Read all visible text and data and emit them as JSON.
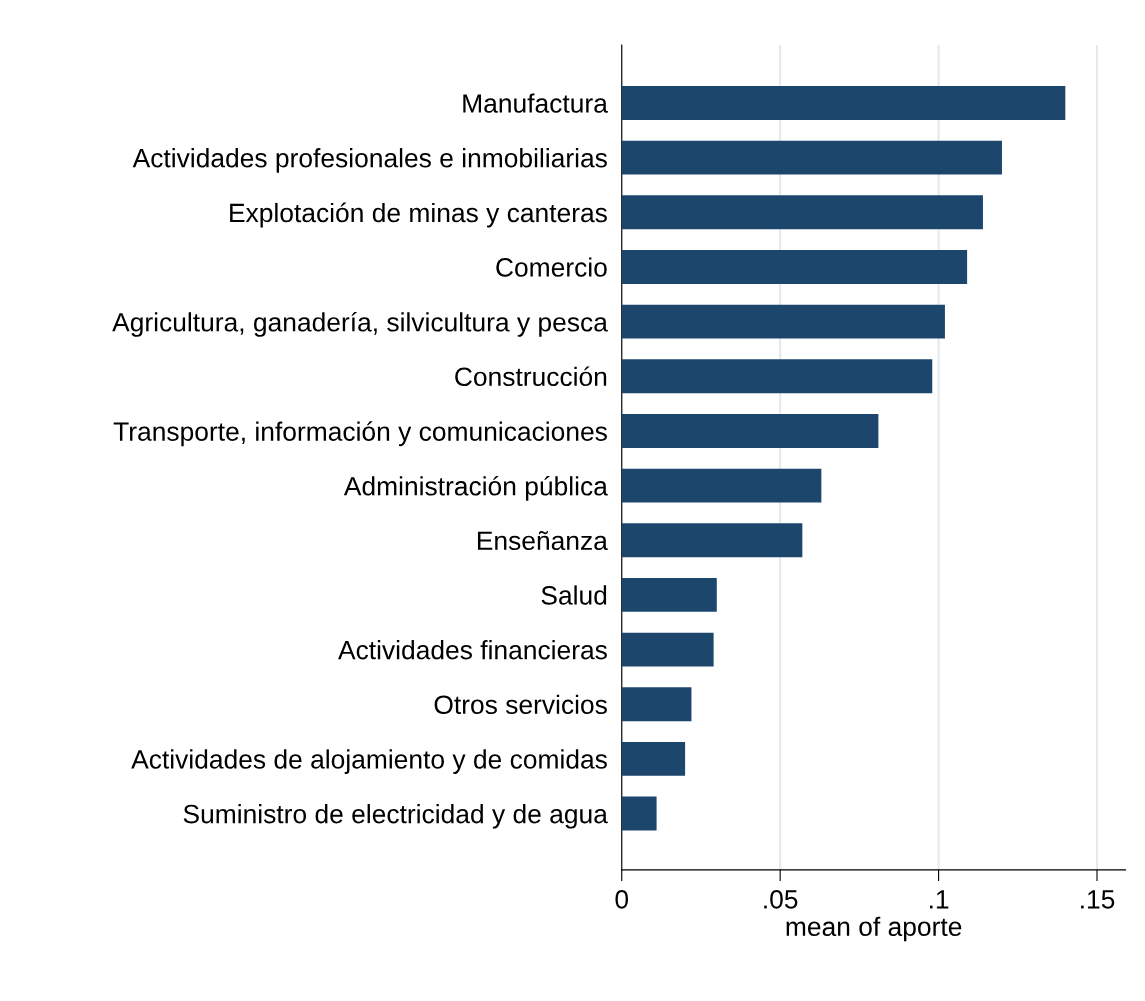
{
  "chart_data": {
    "type": "bar",
    "orientation": "horizontal",
    "xlabel": "mean of aporte",
    "categories": [
      "Manufactura",
      "Actividades profesionales e inmobiliarias",
      "Explotación de minas y canteras",
      "Comercio",
      "Agricultura, ganadería, silvicultura y pesca",
      "Construcción",
      "Transporte, información y comunicaciones",
      "Administración pública",
      "Enseñanza",
      "Salud",
      "Actividades financieras",
      "Otros servicios",
      "Actividades de alojamiento y de comidas",
      "Suministro de electricidad y de agua"
    ],
    "values": [
      0.14,
      0.12,
      0.114,
      0.109,
      0.102,
      0.098,
      0.081,
      0.063,
      0.057,
      0.03,
      0.029,
      0.022,
      0.02,
      0.011
    ],
    "color": "#1c466c",
    "xlim": [
      0,
      0.159
    ],
    "xticks": [
      {
        "value": 0,
        "label": "0"
      },
      {
        "value": 0.05,
        "label": ".05"
      },
      {
        "value": 0.1,
        "label": ".1"
      },
      {
        "value": 0.15,
        "label": ".15"
      }
    ],
    "grid": "x"
  }
}
